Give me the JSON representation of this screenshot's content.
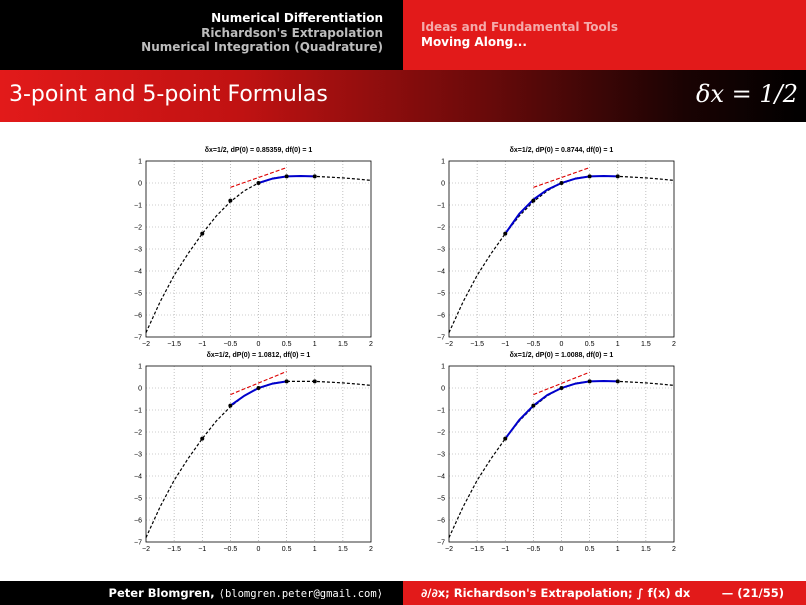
{
  "header": {
    "left_items": [
      "Numerical Differentiation",
      "Richardson's Extrapolation",
      "Numerical Integration (Quadrature)"
    ],
    "right_items": [
      "Ideas and Fundamental Tools",
      "Moving Along..."
    ]
  },
  "slide": {
    "title": "3-point and 5-point Formulas",
    "title_right": "δx = 1/2"
  },
  "footer": {
    "author": "Peter Blomgren,",
    "email": "⟨blomgren.peter@gmail.com⟩",
    "topic": "∂/∂x; Richardson's Extrapolation; ∫ f(x) dx",
    "page": "— (21/55)"
  },
  "chart_data": [
    {
      "type": "line",
      "title": "δx=1/2,  dP(0) = 0.85359,  df(0) = 1",
      "xlim": [
        -2,
        2
      ],
      "ylim": [
        -7,
        1
      ],
      "xticks": [
        "−2",
        "−1.5",
        "−1",
        "−0.5",
        "0",
        "0.5",
        "1",
        "1.5",
        "2"
      ],
      "yticks": [
        "1",
        "0",
        "−1",
        "−2",
        "−3",
        "−4",
        "−5",
        "−6",
        "−7"
      ],
      "grid": true,
      "series": [
        {
          "style": "black-dashed",
          "x": [
            -2,
            -1.75,
            -1.5,
            -1.25,
            -1,
            -0.75,
            -0.5,
            -0.25,
            0,
            0.25,
            0.5,
            0.75,
            1,
            1.25,
            1.5,
            1.75,
            2
          ],
          "y": [
            -6.8,
            -5.4,
            -4.2,
            -3.2,
            -2.3,
            -1.5,
            -0.85,
            -0.35,
            0,
            0.22,
            0.3,
            0.3,
            0.3,
            0.27,
            0.23,
            0.18,
            0.12
          ]
        },
        {
          "style": "blue-solid",
          "x": [
            0,
            0.25,
            0.5,
            0.75,
            1
          ],
          "y": [
            0,
            0.2,
            0.3,
            0.32,
            0.3
          ]
        },
        {
          "style": "red-dashed",
          "x": [
            -0.5,
            0.5
          ],
          "y": [
            -0.2,
            0.7
          ]
        },
        {
          "style": "points",
          "x": [
            -1,
            -0.5,
            0,
            0.5,
            1
          ],
          "y": [
            -2.3,
            -0.8,
            0,
            0.3,
            0.3
          ]
        }
      ]
    },
    {
      "type": "line",
      "title": "δx=1/2,  dP(0) = 0.8744,  df(0) = 1",
      "xlim": [
        -2,
        2
      ],
      "ylim": [
        -7,
        1
      ],
      "xticks": [
        "−2",
        "−1.5",
        "−1",
        "−0.5",
        "0",
        "0.5",
        "1",
        "1.5",
        "2"
      ],
      "yticks": [
        "1",
        "0",
        "−1",
        "−2",
        "−3",
        "−4",
        "−5",
        "−6",
        "−7"
      ],
      "grid": true,
      "series": [
        {
          "style": "black-dashed",
          "x": [
            -2,
            -1.75,
            -1.5,
            -1.25,
            -1,
            -0.75,
            -0.5,
            -0.25,
            0,
            0.25,
            0.5,
            0.75,
            1,
            1.25,
            1.5,
            1.75,
            2
          ],
          "y": [
            -6.8,
            -5.4,
            -4.2,
            -3.2,
            -2.3,
            -1.5,
            -0.85,
            -0.35,
            0,
            0.22,
            0.3,
            0.3,
            0.3,
            0.27,
            0.23,
            0.18,
            0.12
          ]
        },
        {
          "style": "blue-solid",
          "x": [
            -1,
            -0.75,
            -0.5,
            -0.25,
            0,
            0.25,
            0.5,
            0.75,
            1
          ],
          "y": [
            -2.3,
            -1.4,
            -0.75,
            -0.3,
            0,
            0.2,
            0.3,
            0.32,
            0.3
          ]
        },
        {
          "style": "red-dashed",
          "x": [
            -0.5,
            0.5
          ],
          "y": [
            -0.2,
            0.7
          ]
        },
        {
          "style": "points",
          "x": [
            -1,
            -0.5,
            0,
            0.5,
            1
          ],
          "y": [
            -2.3,
            -0.8,
            0,
            0.3,
            0.3
          ]
        }
      ]
    },
    {
      "type": "line",
      "title": "δx=1/2,  dP(0) = 1.0812,  df(0) = 1",
      "xlim": [
        -2,
        2
      ],
      "ylim": [
        -7,
        1
      ],
      "xticks": [
        "−2",
        "−1.5",
        "−1",
        "−0.5",
        "0",
        "0.5",
        "1",
        "1.5",
        "2"
      ],
      "yticks": [
        "1",
        "0",
        "−1",
        "−2",
        "−3",
        "−4",
        "−5",
        "−6",
        "−7"
      ],
      "grid": true,
      "series": [
        {
          "style": "black-dashed",
          "x": [
            -2,
            -1.75,
            -1.5,
            -1.25,
            -1,
            -0.75,
            -0.5,
            -0.25,
            0,
            0.25,
            0.5,
            0.75,
            1,
            1.25,
            1.5,
            1.75,
            2
          ],
          "y": [
            -6.8,
            -5.4,
            -4.2,
            -3.2,
            -2.3,
            -1.5,
            -0.85,
            -0.35,
            0,
            0.22,
            0.3,
            0.3,
            0.3,
            0.27,
            0.23,
            0.18,
            0.12
          ]
        },
        {
          "style": "blue-solid",
          "x": [
            -0.5,
            -0.25,
            0,
            0.25,
            0.5
          ],
          "y": [
            -0.8,
            -0.35,
            0,
            0.2,
            0.3
          ]
        },
        {
          "style": "red-dashed",
          "x": [
            -0.5,
            0.5
          ],
          "y": [
            -0.3,
            0.75
          ]
        },
        {
          "style": "points",
          "x": [
            -1,
            -0.5,
            0,
            0.5,
            1
          ],
          "y": [
            -2.3,
            -0.8,
            0,
            0.3,
            0.3
          ]
        }
      ]
    },
    {
      "type": "line",
      "title": "δx=1/2,  dP(0) = 1.0088,  df(0) = 1",
      "xlim": [
        -2,
        2
      ],
      "ylim": [
        -7,
        1
      ],
      "xticks": [
        "−2",
        "−1.5",
        "−1",
        "−0.5",
        "0",
        "0.5",
        "1",
        "1.5",
        "2"
      ],
      "yticks": [
        "1",
        "0",
        "−1",
        "−2",
        "−3",
        "−4",
        "−5",
        "−6",
        "−7"
      ],
      "grid": true,
      "series": [
        {
          "style": "black-dashed",
          "x": [
            -2,
            -1.75,
            -1.5,
            -1.25,
            -1,
            -0.75,
            -0.5,
            -0.25,
            0,
            0.25,
            0.5,
            0.75,
            1,
            1.25,
            1.5,
            1.75,
            2
          ],
          "y": [
            -6.8,
            -5.4,
            -4.2,
            -3.2,
            -2.3,
            -1.5,
            -0.85,
            -0.35,
            0,
            0.22,
            0.3,
            0.3,
            0.3,
            0.27,
            0.23,
            0.18,
            0.12
          ]
        },
        {
          "style": "blue-solid",
          "x": [
            -1,
            -0.75,
            -0.5,
            -0.25,
            0,
            0.25,
            0.5,
            0.75,
            1
          ],
          "y": [
            -2.3,
            -1.45,
            -0.8,
            -0.32,
            0,
            0.2,
            0.3,
            0.32,
            0.3
          ]
        },
        {
          "style": "red-dashed",
          "x": [
            -0.5,
            0.5
          ],
          "y": [
            -0.3,
            0.72
          ]
        },
        {
          "style": "points",
          "x": [
            -1,
            -0.5,
            0,
            0.5,
            1
          ],
          "y": [
            -2.3,
            -0.8,
            0,
            0.3,
            0.3
          ]
        }
      ]
    }
  ]
}
